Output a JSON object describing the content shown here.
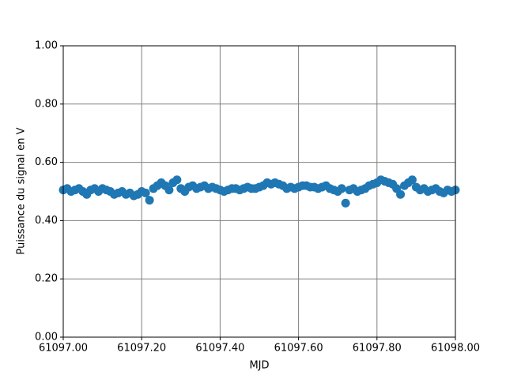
{
  "chart_data": {
    "type": "scatter",
    "xlabel": "MJD",
    "ylabel": "Puissance du signal en V",
    "x": [
      61097.0,
      61097.01,
      61097.02,
      61097.03,
      61097.04,
      61097.05,
      61097.06,
      61097.07,
      61097.08,
      61097.09,
      61097.1,
      61097.11,
      61097.12,
      61097.13,
      61097.14,
      61097.15,
      61097.16,
      61097.17,
      61097.18,
      61097.19,
      61097.2,
      61097.21,
      61097.22,
      61097.23,
      61097.24,
      61097.25,
      61097.26,
      61097.27,
      61097.28,
      61097.29,
      61097.3,
      61097.31,
      61097.32,
      61097.33,
      61097.34,
      61097.35,
      61097.36,
      61097.37,
      61097.38,
      61097.39,
      61097.4,
      61097.41,
      61097.42,
      61097.43,
      61097.44,
      61097.45,
      61097.46,
      61097.47,
      61097.48,
      61097.49,
      61097.5,
      61097.51,
      61097.52,
      61097.53,
      61097.54,
      61097.55,
      61097.56,
      61097.57,
      61097.58,
      61097.59,
      61097.6,
      61097.61,
      61097.62,
      61097.63,
      61097.64,
      61097.65,
      61097.66,
      61097.67,
      61097.68,
      61097.69,
      61097.7,
      61097.71,
      61097.72,
      61097.73,
      61097.74,
      61097.75,
      61097.76,
      61097.77,
      61097.78,
      61097.79,
      61097.8,
      61097.81,
      61097.82,
      61097.83,
      61097.84,
      61097.85,
      61097.86,
      61097.87,
      61097.88,
      61097.89,
      61097.9,
      61097.91,
      61097.92,
      61097.93,
      61097.94,
      61097.95,
      61097.96,
      61097.97,
      61097.98,
      61097.99,
      61098.0
    ],
    "values": [
      0.505,
      0.51,
      0.5,
      0.505,
      0.51,
      0.5,
      0.49,
      0.505,
      0.51,
      0.5,
      0.51,
      0.505,
      0.5,
      0.49,
      0.495,
      0.5,
      0.49,
      0.495,
      0.485,
      0.49,
      0.5,
      0.495,
      0.47,
      0.51,
      0.52,
      0.53,
      0.52,
      0.505,
      0.53,
      0.54,
      0.51,
      0.5,
      0.515,
      0.52,
      0.51,
      0.515,
      0.52,
      0.51,
      0.515,
      0.51,
      0.505,
      0.5,
      0.505,
      0.51,
      0.51,
      0.505,
      0.51,
      0.515,
      0.51,
      0.51,
      0.515,
      0.52,
      0.53,
      0.525,
      0.53,
      0.525,
      0.52,
      0.51,
      0.515,
      0.51,
      0.515,
      0.52,
      0.52,
      0.515,
      0.515,
      0.51,
      0.515,
      0.52,
      0.51,
      0.505,
      0.5,
      0.51,
      0.46,
      0.505,
      0.51,
      0.5,
      0.505,
      0.51,
      0.52,
      0.525,
      0.53,
      0.54,
      0.535,
      0.53,
      0.525,
      0.51,
      0.49,
      0.52,
      0.53,
      0.54,
      0.515,
      0.505,
      0.51,
      0.5,
      0.505,
      0.51,
      0.5,
      0.495,
      0.505,
      0.5,
      0.505
    ],
    "color": "#1f77b4",
    "xlim": [
      61097,
      61098
    ],
    "xticks": [
      {
        "value": 61097,
        "label": "61097.00"
      },
      {
        "value": 61097.2,
        "label": "61097.20"
      },
      {
        "value": 61097.4,
        "label": "61097.40"
      },
      {
        "value": 61097.6,
        "label": "61097.60"
      },
      {
        "value": 61097.8,
        "label": "61097.80"
      },
      {
        "value": 61098,
        "label": "61098.00"
      }
    ],
    "ylim": [
      0,
      1
    ],
    "yticks": [
      {
        "value": 0,
        "label": "0.00"
      },
      {
        "value": 0.2,
        "label": "0.20"
      },
      {
        "value": 0.4,
        "label": "0.40"
      },
      {
        "value": 0.6,
        "label": "0.60"
      },
      {
        "value": 0.8,
        "label": "0.80"
      },
      {
        "value": 1,
        "label": "1.00"
      }
    ],
    "grid": true
  }
}
